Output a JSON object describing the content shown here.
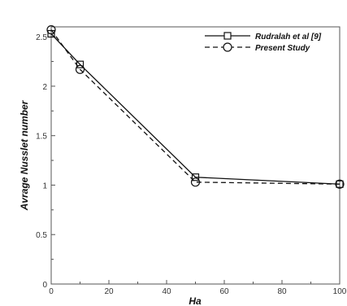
{
  "chart_data": {
    "type": "line",
    "xlabel": "Ha",
    "ylabel": "Avrage Nusslet number",
    "xlim": [
      0,
      100
    ],
    "ylim": [
      0,
      2.6
    ],
    "x_ticks": [
      0,
      20,
      40,
      60,
      80,
      100
    ],
    "y_ticks": [
      0,
      0.5,
      1,
      1.5,
      2,
      2.5
    ],
    "x_tick_labels": [
      "0",
      "20",
      "40",
      "60",
      "80",
      "100"
    ],
    "y_tick_labels": [
      "0",
      "0.5",
      "1",
      "1.5",
      "2",
      "2.5"
    ],
    "grid": false,
    "legend_position": "top-right",
    "series": [
      {
        "name": "Rudralah et al [9]",
        "marker": "square",
        "line_style": "solid",
        "x": [
          0,
          10,
          50,
          100
        ],
        "y": [
          2.53,
          2.22,
          1.08,
          1.01
        ]
      },
      {
        "name": "Present Study",
        "marker": "circle",
        "line_style": "dashed",
        "x": [
          0,
          10,
          50,
          100
        ],
        "y": [
          2.57,
          2.17,
          1.03,
          1.01
        ]
      }
    ]
  }
}
